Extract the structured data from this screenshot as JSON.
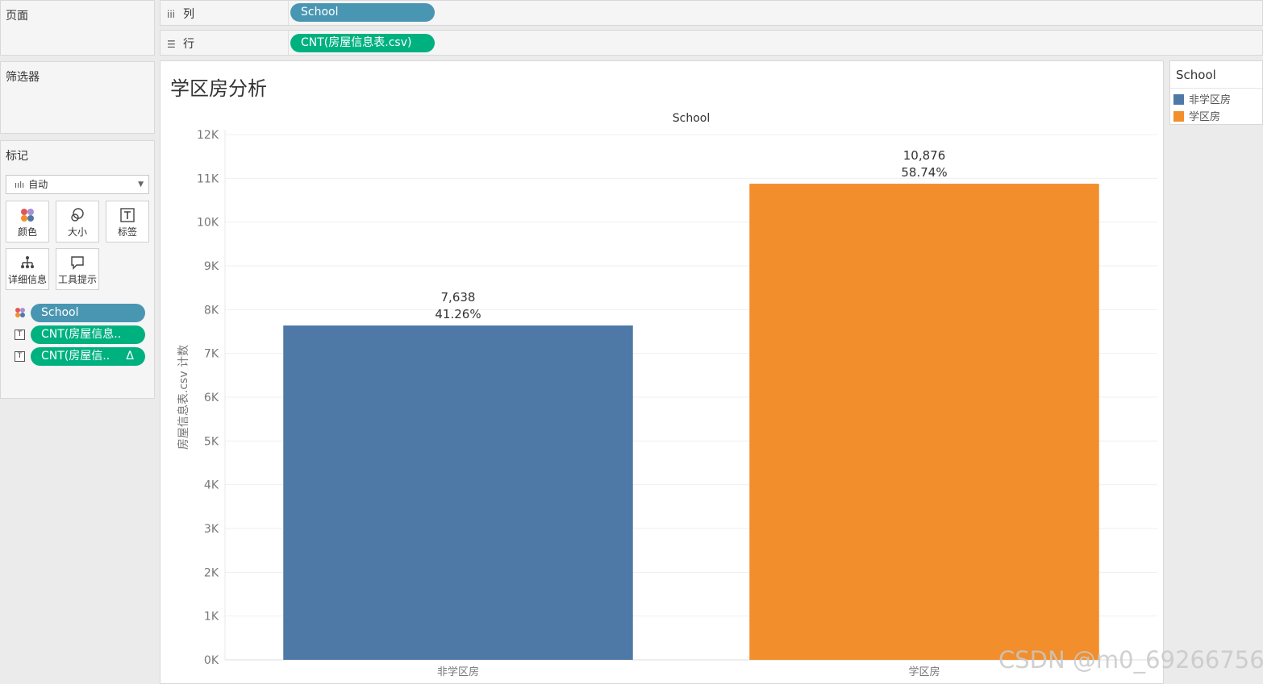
{
  "left_panel": {
    "pages_title": "页面",
    "filters_title": "筛选器",
    "marks_title": "标记",
    "mark_type": "自动",
    "mark_buttons": {
      "color": "颜色",
      "size": "大小",
      "label": "标签",
      "detail": "详细信息",
      "tooltip": "工具提示"
    },
    "mark_fields": [
      {
        "label": "School"
      },
      {
        "label": "CNT(房屋信息.."
      },
      {
        "label": "CNT(房屋信..",
        "badge": "Δ"
      }
    ]
  },
  "shelves": {
    "columns_label": "列",
    "columns_pill": "School",
    "rows_label": "行",
    "rows_pill": "CNT(房屋信息表.csv)"
  },
  "viz": {
    "title": "学区房分析"
  },
  "legend": {
    "title": "School",
    "items": [
      {
        "label": "非学区房",
        "color": "#4e79a7"
      },
      {
        "label": "学区房",
        "color": "#f28e2b"
      }
    ]
  },
  "watermark": "CSDN @m0_69266756",
  "chart_data": {
    "type": "bar",
    "title": "",
    "header": "School",
    "xlabel": "",
    "ylabel": "房屋信息表.csv 计数",
    "categories": [
      "非学区房",
      "学区房"
    ],
    "values": [
      7638,
      10876
    ],
    "value_labels": [
      "7,638",
      "10,876"
    ],
    "percent_labels": [
      "41.26%",
      "58.74%"
    ],
    "colors": [
      "#4e79a7",
      "#f28e2b"
    ],
    "ylim": [
      0,
      12000
    ],
    "yticks": [
      0,
      1000,
      2000,
      3000,
      4000,
      5000,
      6000,
      7000,
      8000,
      9000,
      10000,
      11000,
      12000
    ],
    "ytick_labels": [
      "0K",
      "1K",
      "2K",
      "3K",
      "4K",
      "5K",
      "6K",
      "7K",
      "8K",
      "9K",
      "10K",
      "11K",
      "12K"
    ],
    "grid": true
  }
}
